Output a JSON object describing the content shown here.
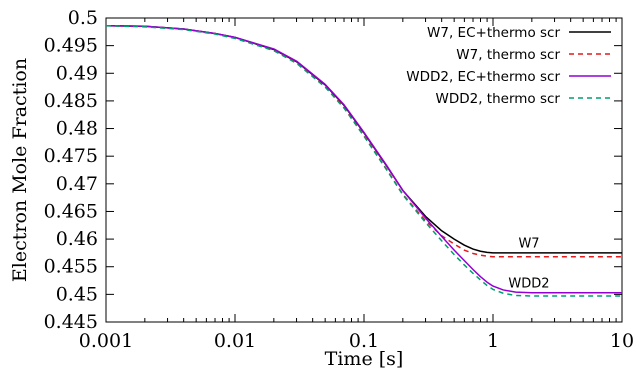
{
  "chart_data": {
    "type": "line",
    "xlabel": "Time [s]",
    "ylabel": "Electron Mole Fraction",
    "xscale": "log",
    "xlim": [
      0.001,
      10
    ],
    "ylim": [
      0.445,
      0.5
    ],
    "xticks": [
      {
        "value": 0.001,
        "label": "0.001"
      },
      {
        "value": 0.01,
        "label": "0.01"
      },
      {
        "value": 0.1,
        "label": "0.1"
      },
      {
        "value": 1,
        "label": "1"
      },
      {
        "value": 10,
        "label": "10"
      }
    ],
    "yticks": [
      {
        "value": 0.445,
        "label": "0.445"
      },
      {
        "value": 0.45,
        "label": "0.45"
      },
      {
        "value": 0.455,
        "label": "0.455"
      },
      {
        "value": 0.46,
        "label": "0.46"
      },
      {
        "value": 0.465,
        "label": "0.465"
      },
      {
        "value": 0.47,
        "label": "0.47"
      },
      {
        "value": 0.475,
        "label": "0.475"
      },
      {
        "value": 0.48,
        "label": "0.48"
      },
      {
        "value": 0.485,
        "label": "0.485"
      },
      {
        "value": 0.49,
        "label": "0.49"
      },
      {
        "value": 0.495,
        "label": "0.495"
      },
      {
        "value": 0.5,
        "label": "0.5"
      }
    ],
    "grid": false,
    "legend_position": "top-right",
    "series": [
      {
        "name": "W7, EC+thermo scr",
        "color": "#000000",
        "dash": "solid",
        "x": [
          0.001,
          0.002,
          0.004,
          0.007,
          0.01,
          0.02,
          0.03,
          0.05,
          0.07,
          0.1,
          0.15,
          0.2,
          0.3,
          0.4,
          0.5,
          0.6,
          0.7,
          0.8,
          0.9,
          1.0,
          1.2,
          1.5,
          2,
          3,
          5,
          10
        ],
        "y": [
          0.4986,
          0.4985,
          0.498,
          0.4972,
          0.4965,
          0.4943,
          0.4921,
          0.4879,
          0.4842,
          0.4792,
          0.4732,
          0.4688,
          0.4641,
          0.4615,
          0.46,
          0.4589,
          0.4582,
          0.4578,
          0.4576,
          0.4575,
          0.4575,
          0.4575,
          0.4575,
          0.4575,
          0.4575,
          0.4575
        ]
      },
      {
        "name": "W7, thermo scr",
        "color": "#e41a1c",
        "dash": "dashed",
        "x": [
          0.001,
          0.002,
          0.004,
          0.007,
          0.01,
          0.02,
          0.03,
          0.05,
          0.07,
          0.1,
          0.15,
          0.2,
          0.3,
          0.4,
          0.5,
          0.6,
          0.7,
          0.8,
          0.9,
          1.0,
          1.2,
          1.5,
          2,
          3,
          5,
          10
        ],
        "y": [
          0.4986,
          0.4985,
          0.498,
          0.4972,
          0.4964,
          0.4941,
          0.4919,
          0.4876,
          0.4838,
          0.4787,
          0.4726,
          0.4681,
          0.4633,
          0.4606,
          0.4591,
          0.458,
          0.4574,
          0.4571,
          0.4569,
          0.4568,
          0.4568,
          0.4568,
          0.4568,
          0.4568,
          0.4568,
          0.4568
        ]
      },
      {
        "name": "WDD2, EC+thermo scr",
        "color": "#9400d3",
        "dash": "solid",
        "x": [
          0.001,
          0.002,
          0.004,
          0.007,
          0.01,
          0.02,
          0.03,
          0.05,
          0.07,
          0.1,
          0.15,
          0.2,
          0.3,
          0.4,
          0.5,
          0.6,
          0.7,
          0.8,
          0.9,
          1.0,
          1.2,
          1.5,
          2,
          3,
          5,
          10
        ],
        "y": [
          0.4986,
          0.4985,
          0.498,
          0.4972,
          0.4965,
          0.4944,
          0.4922,
          0.488,
          0.4843,
          0.4793,
          0.4733,
          0.4688,
          0.4638,
          0.4605,
          0.458,
          0.4561,
          0.4545,
          0.4532,
          0.4522,
          0.4515,
          0.4508,
          0.4504,
          0.4503,
          0.4503,
          0.4503,
          0.4503
        ]
      },
      {
        "name": "WDD2, thermo scr",
        "color": "#009e73",
        "dash": "dashed",
        "x": [
          0.001,
          0.002,
          0.004,
          0.007,
          0.01,
          0.02,
          0.03,
          0.05,
          0.07,
          0.1,
          0.15,
          0.2,
          0.3,
          0.4,
          0.5,
          0.6,
          0.7,
          0.8,
          0.9,
          1.0,
          1.2,
          1.5,
          2,
          3,
          5,
          10
        ],
        "y": [
          0.4986,
          0.4984,
          0.4979,
          0.4971,
          0.4963,
          0.4941,
          0.4918,
          0.4875,
          0.4837,
          0.4786,
          0.4725,
          0.468,
          0.463,
          0.4597,
          0.4572,
          0.4553,
          0.4538,
          0.4526,
          0.4516,
          0.4509,
          0.4502,
          0.4498,
          0.4497,
          0.4497,
          0.4497,
          0.4497
        ]
      }
    ],
    "annotations": [
      {
        "text": "W7",
        "x": 1.0,
        "y": 0.4585
      },
      {
        "text": "WDD2",
        "x": 1.0,
        "y": 0.4512
      }
    ]
  }
}
